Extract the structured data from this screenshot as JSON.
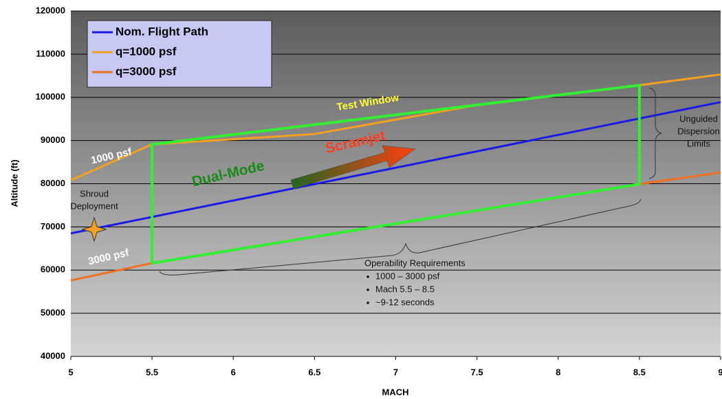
{
  "chart_data": {
    "type": "line",
    "xlabel": "MACH",
    "ylabel": "Altitude (ft)",
    "xlim": [
      5,
      9
    ],
    "ylim": [
      40000,
      120000
    ],
    "xticks": [
      5,
      5.5,
      6,
      6.5,
      7,
      7.5,
      8,
      8.5,
      9
    ],
    "yticks": [
      40000,
      50000,
      60000,
      70000,
      80000,
      90000,
      100000,
      110000,
      120000
    ],
    "grid": true,
    "legend": "upper left",
    "series": [
      {
        "name": "Nom. Flight Path",
        "color": "#1a1ae6",
        "x": [
          5,
          5.5,
          6,
          6.5,
          7,
          7.5,
          8,
          8.5,
          9
        ],
        "values": [
          68500,
          72300,
          76100,
          79900,
          83700,
          87500,
          91300,
          95100,
          98900
        ]
      },
      {
        "name": "q=1000 psf",
        "color": "#f5a020",
        "x": [
          5,
          5.5,
          6.5,
          7.5,
          8.5,
          9
        ],
        "values": [
          80800,
          89100,
          91500,
          98200,
          102800,
          105300
        ]
      },
      {
        "name": "q=3000 psf",
        "color": "#f07020",
        "x": [
          5,
          5.5,
          6.5,
          7.5,
          8.5,
          9
        ],
        "values": [
          57600,
          61600,
          67700,
          73800,
          79900,
          82600
        ]
      }
    ],
    "window": {
      "color": "#33ee33",
      "x": [
        5.5,
        5.5,
        8.5,
        8.5,
        5.5
      ],
      "values": [
        61600,
        89100,
        102800,
        79900,
        61600
      ]
    },
    "annotations": [
      "1000 psf",
      "3000 psf",
      "Test Window",
      "Scramjet",
      "Dual-Mode",
      "Shroud",
      "Deployment",
      "Unguided",
      "Dispersion",
      "Limits"
    ],
    "requirements": {
      "title": "Operability Requirements",
      "items": [
        "1000 – 3000 psf",
        "Mach 5.5 – 8.5",
        "~9-12 seconds"
      ]
    }
  }
}
